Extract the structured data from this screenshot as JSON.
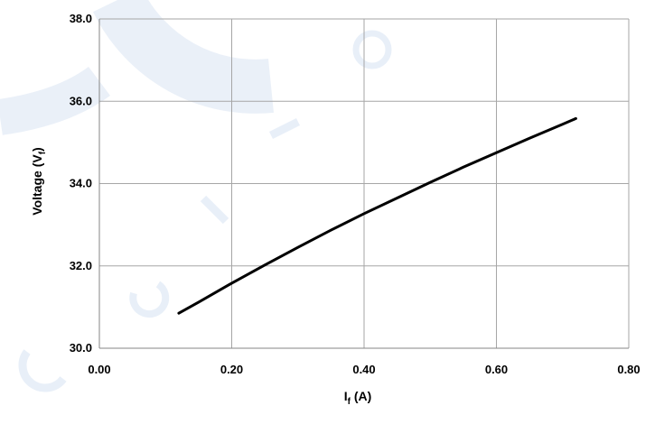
{
  "chart_data": {
    "type": "line",
    "xlabel_main": "I",
    "xlabel_sub": "f",
    "xlabel_tail": " (A)",
    "ylabel_main": "Voltage (V",
    "ylabel_sub": "f",
    "ylabel_tail": ")",
    "xlim": [
      0.0,
      0.8
    ],
    "ylim": [
      30.0,
      38.0
    ],
    "x_ticks": [
      "0.00",
      "0.20",
      "0.40",
      "0.60",
      "0.80"
    ],
    "y_ticks": [
      "30.0",
      "32.0",
      "34.0",
      "36.0",
      "38.0"
    ],
    "x_tick_values": [
      0.0,
      0.2,
      0.4,
      0.6,
      0.8
    ],
    "y_tick_values": [
      30.0,
      32.0,
      34.0,
      36.0,
      38.0
    ],
    "grid": true,
    "series": [
      {
        "x": [
          0.12,
          0.15,
          0.2,
          0.25,
          0.3,
          0.35,
          0.4,
          0.45,
          0.5,
          0.55,
          0.6,
          0.65,
          0.7,
          0.72
        ],
        "y": [
          30.85,
          31.12,
          31.58,
          32.02,
          32.45,
          32.87,
          33.27,
          33.65,
          34.03,
          34.4,
          34.75,
          35.1,
          35.44,
          35.58
        ]
      }
    ]
  },
  "colors": {
    "line": "#000000",
    "grid": "#a6a6a6",
    "axis": "#868686",
    "watermark": "#d9e4f3"
  }
}
